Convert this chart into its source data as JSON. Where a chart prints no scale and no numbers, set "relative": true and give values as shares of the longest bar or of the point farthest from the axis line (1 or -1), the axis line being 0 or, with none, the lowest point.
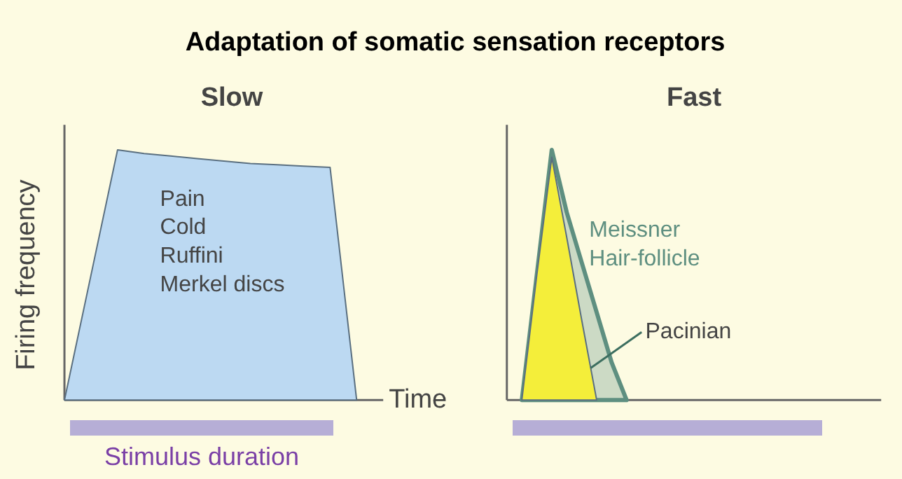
{
  "chart_data": [
    {
      "type": "other",
      "title": "Adaptation of somatic sensation receptors"
    },
    {
      "type": "area",
      "title": "Slow",
      "ylabel": "Firing frequency",
      "xlabel": "Time",
      "relative": true,
      "categories": [
        null,
        null,
        null,
        null,
        null,
        null,
        null,
        null,
        null,
        null,
        null,
        null
      ],
      "series": [
        {
          "color": "#bcd9f2",
          "values": [
            0,
            0.5,
            1,
            0.985,
            0.975,
            0.965,
            0.955,
            0.945,
            0.94,
            0.935,
            0.93,
            0
          ]
        }
      ],
      "annotations": [
        "Pain\nCold\nRuffini\nMerkel discs",
        "Stimulus duration"
      ]
    },
    {
      "type": "area",
      "title": "Fast",
      "relative": true,
      "categories": [
        null,
        null,
        null,
        null,
        null,
        null,
        null,
        null,
        null,
        null,
        null,
        null,
        null,
        null,
        null,
        null,
        null,
        null,
        null,
        null,
        null,
        null,
        null,
        null,
        null
      ],
      "series": [
        {
          "name": "Meissner\nHair-follicle",
          "color": "#5e8f80",
          "values": [
            null,
            0,
            0.5,
            1,
            0.75,
            0.55,
            0.35,
            0.15,
            0,
            null,
            null,
            null,
            null,
            null,
            null,
            null,
            null,
            null,
            null,
            null,
            null,
            null,
            null,
            null,
            null
          ]
        },
        {
          "name": "Pacinian",
          "color": "#f4ee3a",
          "values": [
            null,
            0,
            0.5,
            0.97,
            0.65,
            0.32,
            0,
            null,
            null,
            null,
            null,
            null,
            null,
            null,
            null,
            null,
            null,
            null,
            null,
            null,
            null,
            null,
            null,
            null,
            null
          ]
        }
      ]
    }
  ]
}
